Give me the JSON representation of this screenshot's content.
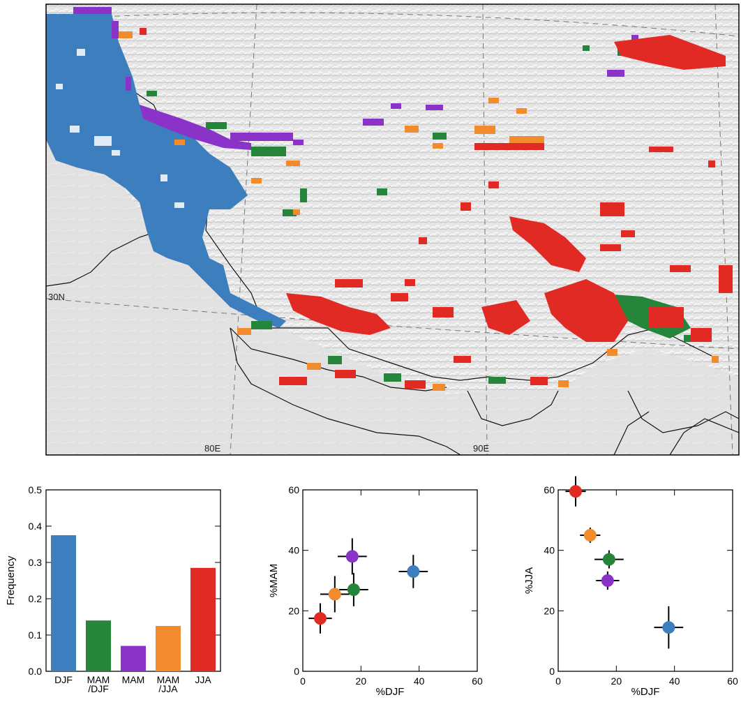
{
  "colors": {
    "djf": "#3d7ebf",
    "mam_djf": "#25853a",
    "mam": "#8b33c9",
    "mam_jja": "#f28a2e",
    "jja": "#e22a24"
  },
  "map": {
    "lat_label": "30N",
    "lon_labels": [
      "80E",
      "90E"
    ]
  },
  "chart_data": [
    {
      "type": "bar",
      "categories": [
        "DJF",
        "MAM\n/DJF",
        "MAM",
        "MAM\n/JJA",
        "JJA"
      ],
      "values": [
        0.375,
        0.14,
        0.07,
        0.125,
        0.285
      ],
      "ylabel": "Frequency",
      "ylim": [
        0,
        0.5
      ],
      "yticks": [
        "0.0",
        "0.1",
        "0.2",
        "0.3",
        "0.4",
        "0.5"
      ]
    },
    {
      "type": "scatter",
      "xlabel": "%DJF",
      "ylabel": "%MAM",
      "xlim": [
        0,
        60
      ],
      "ylim": [
        0,
        60
      ],
      "xticks": [
        "0",
        "20",
        "40",
        "60"
      ],
      "yticks": [
        "0",
        "20",
        "40",
        "60"
      ],
      "points": [
        {
          "class": "djf",
          "x": 38,
          "y": 33,
          "xerr": 5,
          "yerr": 5.5
        },
        {
          "class": "mam_djf",
          "x": 17.5,
          "y": 27,
          "xerr": 5,
          "yerr": 5.5
        },
        {
          "class": "mam",
          "x": 17,
          "y": 38,
          "xerr": 5,
          "yerr": 6
        },
        {
          "class": "mam_jja",
          "x": 11,
          "y": 25.5,
          "xerr": 5,
          "yerr": 6
        },
        {
          "class": "jja",
          "x": 6,
          "y": 17.5,
          "xerr": 4,
          "yerr": 5
        }
      ]
    },
    {
      "type": "scatter",
      "xlabel": "%DJF",
      "ylabel": "%JJA",
      "xlim": [
        0,
        60
      ],
      "ylim": [
        0,
        60
      ],
      "xticks": [
        "0",
        "20",
        "40",
        "60"
      ],
      "yticks": [
        "0",
        "20",
        "40",
        "60"
      ],
      "points": [
        {
          "class": "djf",
          "x": 38,
          "y": 14.5,
          "xerr": 5,
          "yerr": 7
        },
        {
          "class": "mam_djf",
          "x": 17.5,
          "y": 37,
          "xerr": 5,
          "yerr": 3
        },
        {
          "class": "mam",
          "x": 17,
          "y": 30,
          "xerr": 4,
          "yerr": 3
        },
        {
          "class": "mam_jja",
          "x": 11,
          "y": 45,
          "xerr": 3.5,
          "yerr": 2.5
        },
        {
          "class": "jja",
          "x": 6,
          "y": 59.5,
          "xerr": 3.5,
          "yerr": 5
        }
      ]
    }
  ]
}
